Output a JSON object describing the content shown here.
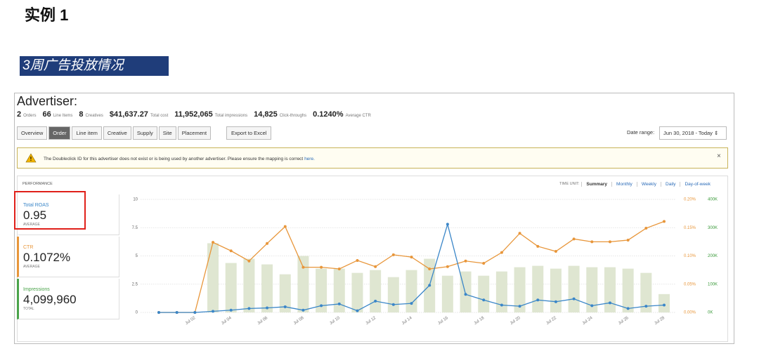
{
  "header": {
    "title": "实例 1",
    "banner": "3周广告投放情况"
  },
  "dashboard": {
    "advertiser": "Advertiser:",
    "stats": [
      {
        "value": "2",
        "label": "Orders"
      },
      {
        "value": "66",
        "label": "Line Items"
      },
      {
        "value": "8",
        "label": "Creatives"
      },
      {
        "value": "$41,637.27",
        "label": "Total cost"
      },
      {
        "value": "11,952,065",
        "label": "Total impressions"
      },
      {
        "value": "14,825",
        "label": "Click-throughs"
      },
      {
        "value": "0.1240%",
        "label": "Average CTR"
      }
    ],
    "tabs": [
      "Overview",
      "Order",
      "Line item",
      "Creative",
      "Supply",
      "Site",
      "Placement"
    ],
    "export": "Export to Excel",
    "date_label": "Date range:",
    "date_value": "Jun 30, 2018 - Today",
    "warning": "The Doubleclick ID for this advertiser does not exist or is being used by another advertiser. Please ensure the mapping is correct",
    "warning_link": "here.",
    "performance": "PERFORMANCE",
    "time_unit_label": "TIME UNIT:",
    "time_units": [
      "Summary",
      "Monthly",
      "Weekly",
      "Daily",
      "Day-of-week"
    ],
    "metrics": [
      {
        "name": "Total ROAS",
        "value": "0.95",
        "note": "AVERAGE"
      },
      {
        "name": "CTR",
        "value": "0.1072%",
        "note": "AVERAGE"
      },
      {
        "name": "Impressions",
        "value": "4,099,960",
        "note": "TOTAL"
      }
    ]
  },
  "chart_data": {
    "type": "combo",
    "categories": [
      null,
      null,
      "Jul 02",
      null,
      "Jul 04",
      null,
      "Jul 06",
      null,
      "Jul 08",
      null,
      "Jul 10",
      null,
      "Jul 12",
      null,
      "Jul 14",
      null,
      "Jul 16",
      null,
      "Jul 18",
      null,
      "Jul 20",
      null,
      "Jul 22",
      null,
      "Jul 24",
      null,
      "Jul 26",
      null,
      "Jul 28"
    ],
    "ylim": [
      0,
      10
    ],
    "yticks": [
      0,
      2.5,
      5,
      7.5,
      10
    ],
    "y2lim": [
      0,
      0.2
    ],
    "y2ticks": [
      {
        "value": 0,
        "label": "0.00%"
      },
      {
        "value": 0.05,
        "label": "0.05%"
      },
      {
        "value": 0.1,
        "label": "0.10%"
      },
      {
        "value": 0.15,
        "label": "0.15%"
      },
      {
        "value": 0.2,
        "label": "0.20%"
      }
    ],
    "y3lim": [
      0,
      400000
    ],
    "y3ticks": [
      {
        "value": 0,
        "label": "0K"
      },
      {
        "value": 100000,
        "label": "100K"
      },
      {
        "value": 200000,
        "label": "200K"
      },
      {
        "value": 300000,
        "label": "300K"
      },
      {
        "value": 400000,
        "label": "400K"
      }
    ],
    "grid": true,
    "series": [
      {
        "name": "Impressions",
        "kind": "bar",
        "axis": "y3",
        "color": "#dfe6d1",
        "values": [
          null,
          null,
          null,
          245000,
          175000,
          190000,
          170000,
          135000,
          200000,
          155000,
          155000,
          140000,
          150000,
          125000,
          150000,
          190000,
          130000,
          145000,
          130000,
          145000,
          160000,
          165000,
          155000,
          165000,
          160000,
          160000,
          155000,
          140000,
          65000
        ]
      },
      {
        "name": "CTR",
        "kind": "line",
        "axis": "y2",
        "color": "#e8963a",
        "values": [
          0,
          0,
          0,
          0.124,
          0.109,
          0.091,
          0.122,
          0.152,
          0.08,
          0.08,
          0.077,
          0.092,
          0.081,
          0.102,
          0.098,
          0.077,
          0.081,
          0.091,
          0.087,
          0.106,
          0.14,
          0.117,
          0.108,
          0.13,
          0.125,
          0.125,
          0.128,
          0.149,
          0.161
        ]
      },
      {
        "name": "Total ROAS",
        "kind": "line",
        "axis": "y",
        "color": "#3a86c8",
        "values": [
          0,
          0,
          0,
          0.1,
          0.2,
          0.35,
          0.4,
          0.5,
          0.2,
          0.6,
          0.75,
          0.15,
          1.0,
          0.7,
          0.8,
          2.4,
          7.8,
          1.6,
          1.1,
          0.65,
          0.55,
          1.1,
          0.95,
          1.2,
          0.6,
          0.85,
          0.35,
          0.55,
          0.65
        ]
      }
    ]
  }
}
